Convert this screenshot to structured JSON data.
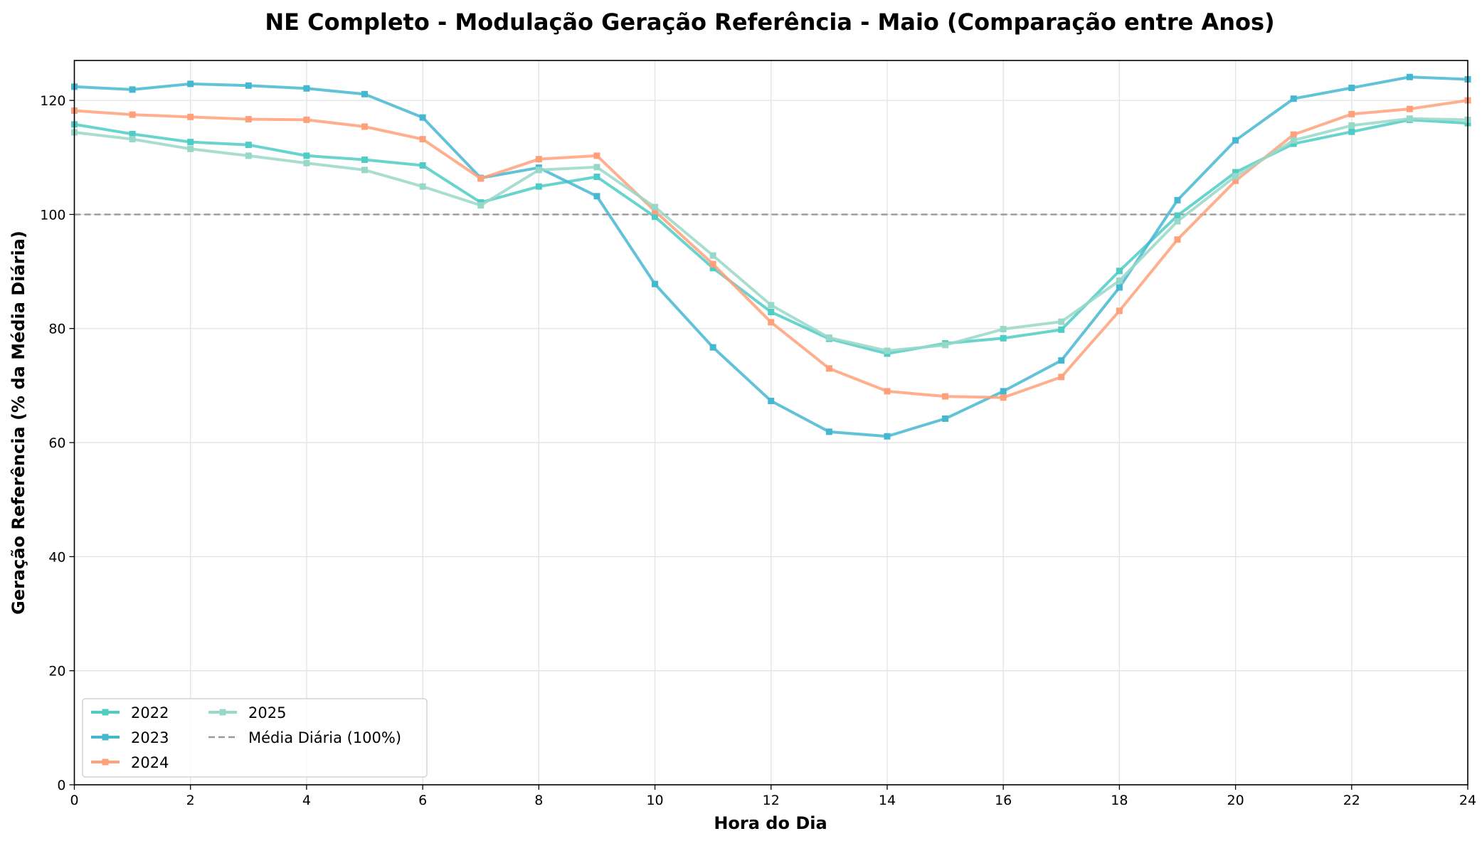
{
  "chart_data": {
    "type": "line",
    "title": "NE Completo - Modulação Geração Referência - Maio (Comparação entre Anos)",
    "xlabel": "Hora do Dia",
    "ylabel": "Geração Referência (% da Média Diária)",
    "xlim": [
      0,
      24
    ],
    "ylim": [
      0,
      127
    ],
    "xticks": [
      0,
      2,
      4,
      6,
      8,
      10,
      12,
      14,
      16,
      18,
      20,
      22,
      24
    ],
    "yticks": [
      0,
      20,
      40,
      60,
      80,
      100,
      120
    ],
    "grid": true,
    "legend_position": "lower-left",
    "x": [
      0,
      1,
      2,
      3,
      4,
      5,
      6,
      7,
      8,
      9,
      10,
      11,
      12,
      13,
      14,
      15,
      16,
      17,
      18,
      19,
      20,
      21,
      22,
      23,
      24
    ],
    "series": [
      {
        "name": "2022",
        "color": "#4ecdc4",
        "values": [
          115.8,
          114.1,
          112.7,
          112.2,
          110.3,
          109.6,
          108.6,
          102.1,
          104.9,
          106.6,
          99.6,
          90.6,
          82.9,
          78.2,
          75.6,
          77.4,
          78.3,
          79.8,
          90.1,
          99.8,
          107.4,
          112.4,
          114.5,
          116.6,
          116.0
        ]
      },
      {
        "name": "2023",
        "color": "#45b7d1",
        "values": [
          122.4,
          121.9,
          122.9,
          122.6,
          122.1,
          121.1,
          117.0,
          106.4,
          108.2,
          103.2,
          87.8,
          76.7,
          67.3,
          61.9,
          61.1,
          64.2,
          69.0,
          74.4,
          87.2,
          102.5,
          113.0,
          120.3,
          122.2,
          124.1,
          123.7
        ]
      },
      {
        "name": "2024",
        "color": "#ffa07a",
        "values": [
          118.2,
          117.5,
          117.1,
          116.7,
          116.6,
          115.4,
          113.2,
          106.3,
          109.7,
          110.3,
          100.6,
          91.3,
          81.1,
          73.0,
          69.0,
          68.1,
          67.9,
          71.5,
          83.1,
          95.6,
          105.9,
          114.0,
          117.6,
          118.5,
          120.0
        ]
      },
      {
        "name": "2025",
        "color": "#98d8c8",
        "values": [
          114.4,
          113.2,
          111.5,
          110.3,
          109.0,
          107.8,
          104.9,
          101.6,
          107.8,
          108.3,
          101.3,
          92.8,
          84.1,
          78.4,
          76.1,
          77.1,
          79.9,
          81.2,
          88.4,
          98.8,
          106.7,
          113.0,
          115.6,
          116.8,
          116.6
        ]
      }
    ],
    "reference_line": {
      "name": "Média Diária (100%)",
      "value": 100,
      "color": "#999999"
    }
  }
}
